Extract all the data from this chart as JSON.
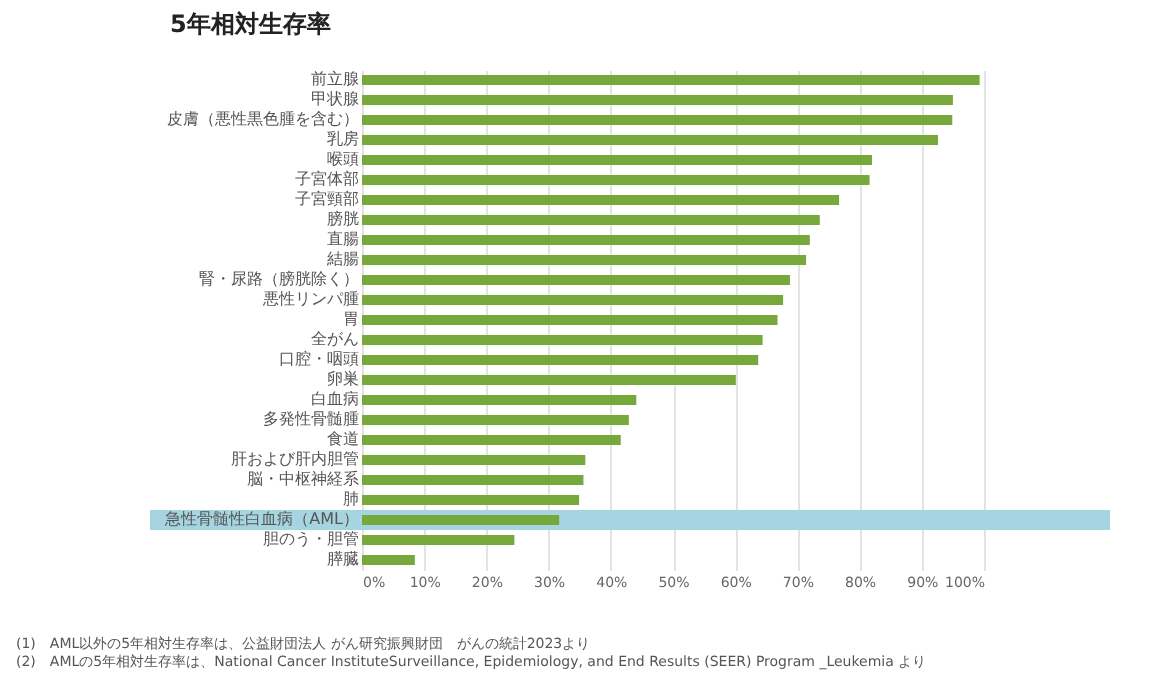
{
  "chart_data": {
    "type": "bar",
    "orientation": "horizontal",
    "title": "5年相対生存率",
    "categories": [
      "前立腺",
      "甲状腺",
      "皮膚（悪性黒色腫を含む）",
      "乳房",
      "喉頭",
      "子宮体部",
      "子宮頸部",
      "膀胱",
      "直腸",
      "結腸",
      "腎・尿路（膀胱除く）",
      "悪性リンパ腫",
      "胃",
      "全がん",
      "口腔・咽頭",
      "卵巣",
      "白血病",
      "多発性骨髄腫",
      "食道",
      "肝および肝内胆管",
      "脳・中枢神経系",
      "肺",
      "急性骨髄性白血病（AML）",
      "胆のう・胆管",
      "膵臓"
    ],
    "values": [
      99.3,
      95.0,
      94.9,
      92.6,
      82.0,
      81.6,
      76.7,
      73.6,
      72.0,
      71.4,
      68.8,
      67.7,
      66.8,
      64.4,
      63.7,
      60.1,
      44.1,
      42.9,
      41.6,
      35.9,
      35.6,
      34.9,
      31.7,
      24.5,
      8.5
    ],
    "color": "#77a83c",
    "xlim": [
      0,
      100
    ],
    "xticks": [
      {
        "value": 0,
        "label": "0%"
      },
      {
        "value": 10,
        "label": "10%"
      },
      {
        "value": 20,
        "label": "20%"
      },
      {
        "value": 30,
        "label": "30%"
      },
      {
        "value": 40,
        "label": "40%"
      },
      {
        "value": 50,
        "label": "50%"
      },
      {
        "value": 60,
        "label": "60%"
      },
      {
        "value": 70,
        "label": "70%"
      },
      {
        "value": 80,
        "label": "80%"
      },
      {
        "value": 90,
        "label": "90%"
      },
      {
        "value": 100,
        "label": "100%"
      }
    ],
    "grid": "x",
    "bands": [
      {
        "axis": "y",
        "from": "急性骨髄性白血病（AML）",
        "to": "急性骨髄性白血病（AML）",
        "color": "#a6d5e1"
      }
    ],
    "annotations": [
      "(1)　AML以外の5年相対生存率は、公益財団法人 がん研究振興財団　がんの統計2023より",
      "(2)　AMLの5年相対生存率は、National Cancer InstituteSurveillance, Epidemiology, and End Results (SEER) Program _Leukemia より"
    ]
  }
}
